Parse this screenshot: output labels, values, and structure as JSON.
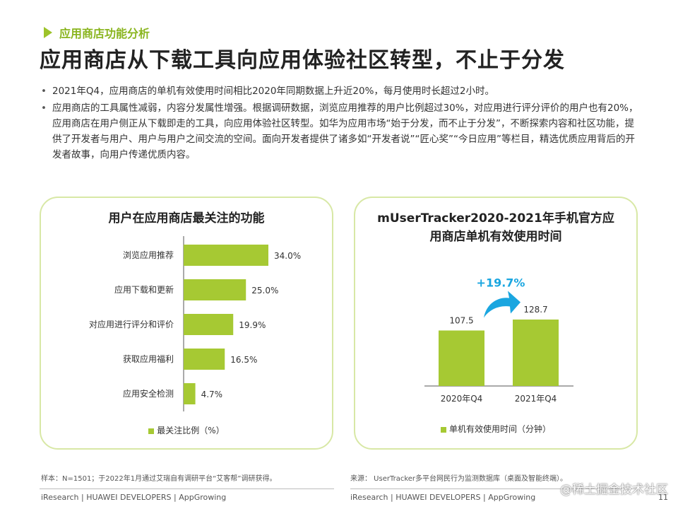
{
  "section_label": "应用商店功能分析",
  "title": "应用商店从下载工具向应用体验社区转型，不止于分发",
  "bullets": [
    "2021年Q4，应用商店的单机有效使用时间相比2020年同期数据上升近20%，每月使用时长超过2小时。",
    "应用商店的工具属性减弱，内容分发属性增强。根据调研数据，浏览应用推荐的用户比例超过30%，对应用进行评分评价的用户也有20%，应用商店在用户侧正从下载即走的工具，向应用体验社区转型。如华为应用市场“始于分发，而不止于分发”，不断探索内容和社区功能，提供了开发者与用户、用户与用户之间交流的空间。面向开发者提供了诸多如“开发者说”“匠心奖”“今日应用”等栏目，精选优质应用背后的开发者故事，向用户传递优质内容。"
  ],
  "chart_data": [
    {
      "type": "bar",
      "orientation": "horizontal",
      "title": "用户在应用商店最关注的功能",
      "categories": [
        "浏览应用推荐",
        "应用下载和更新",
        "对应用进行评分和评价",
        "获取应用福利",
        "应用安全检测"
      ],
      "values": [
        34.0,
        25.0,
        19.9,
        16.5,
        4.7
      ],
      "value_labels": [
        "34.0%",
        "25.0%",
        "19.9%",
        "16.5%",
        "4.7%"
      ],
      "series_name": "最关注比例（%）",
      "xlim": [
        0,
        40
      ],
      "color": "#a6c933",
      "legend": "bottom"
    },
    {
      "type": "bar",
      "title": "mUserTracker2020-2021年手机官方应用商店单机有效使用时间",
      "title_lines": [
        "mUserTracker2020-2021年手机官方应",
        "用商店单机有效使用时间"
      ],
      "categories": [
        "2020年Q4",
        "2021年Q4"
      ],
      "values": [
        107.5,
        128.7
      ],
      "value_labels": [
        "107.5",
        "128.7"
      ],
      "series_name": "单机有效使用时间（分钟）",
      "annotation": "+19.7%",
      "ylim": [
        0,
        140
      ],
      "color": "#a6c933",
      "accent": "#1aa6e0",
      "legend": "bottom"
    }
  ],
  "footnotes": {
    "left": "样本：N=1501；于2022年1月通过艾瑞自有调研平台“艾客帮”调研获得。",
    "right": "来源：  UserTracker多平台网民行为监测数据库（桌面及智能终端）。"
  },
  "footer": {
    "left": "iResearch | HUAWEI DEVELOPERS | AppGrowing",
    "right": "iResearch | HUAWEI DEVELOPERS | AppGrowing",
    "page": "11"
  },
  "watermark": "@稀土掘金技术社区"
}
